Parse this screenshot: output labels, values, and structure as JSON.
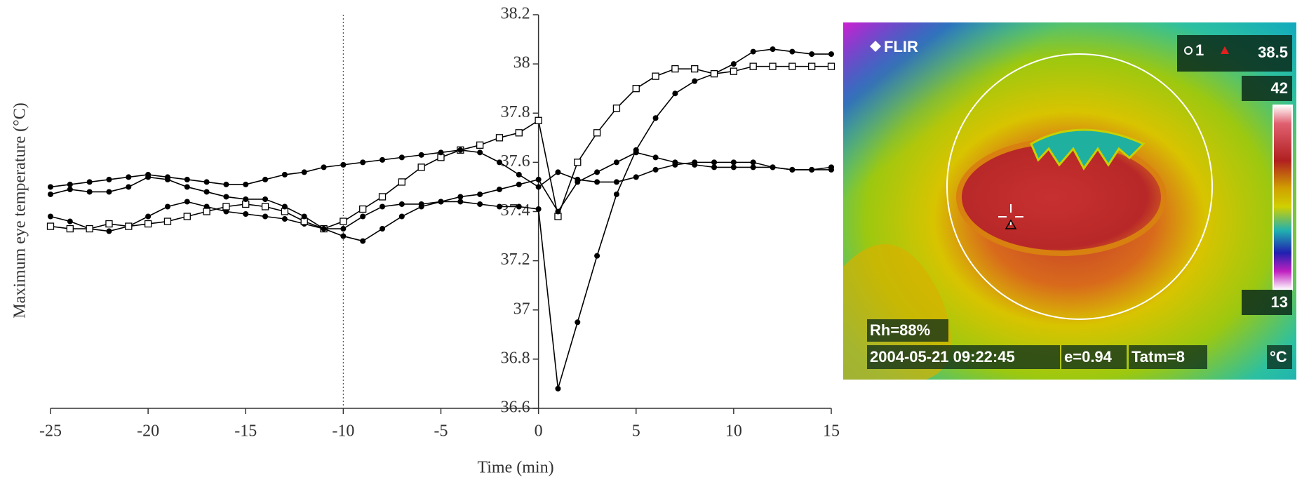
{
  "chart_data": {
    "type": "line",
    "y_label": "Maximum eye temperature (°C)",
    "x_label": "Time (min)",
    "x": [
      -25,
      -24,
      -23,
      -22,
      -21,
      -20,
      -19,
      -18,
      -17,
      -16,
      -15,
      -14,
      -13,
      -12,
      -11,
      -10,
      -9,
      -8,
      -7,
      -6,
      -5,
      -4,
      -3,
      -2,
      -1,
      0,
      1,
      2,
      3,
      4,
      5,
      6,
      7,
      8,
      9,
      10,
      11,
      12,
      13,
      14,
      15
    ],
    "series": [
      {
        "color": "#000000",
        "marker": "circle",
        "values": [
          37.38,
          37.36,
          37.33,
          37.32,
          37.34,
          37.38,
          37.42,
          37.44,
          37.42,
          37.4,
          37.39,
          37.38,
          37.37,
          37.35,
          37.33,
          37.33,
          37.38,
          37.42,
          37.43,
          37.43,
          37.44,
          37.44,
          37.43,
          37.42,
          37.42,
          37.41,
          36.68,
          36.95,
          37.22,
          37.47,
          37.65,
          37.78,
          37.88,
          37.93,
          37.96,
          38.0,
          38.05,
          38.06,
          38.05,
          38.04,
          38.04
        ]
      },
      {
        "color": "#000000",
        "marker": "square",
        "values": [
          37.34,
          37.33,
          37.33,
          37.35,
          37.34,
          37.35,
          37.36,
          37.38,
          37.4,
          37.42,
          37.43,
          37.42,
          37.4,
          37.36,
          37.33,
          37.36,
          37.41,
          37.46,
          37.52,
          37.58,
          37.62,
          37.65,
          37.67,
          37.7,
          37.72,
          37.77,
          37.38,
          37.6,
          37.72,
          37.82,
          37.9,
          37.95,
          37.98,
          37.98,
          37.96,
          37.97,
          37.99,
          37.99,
          37.99,
          37.99,
          37.99
        ]
      },
      {
        "color": "#000000",
        "marker": "circle",
        "values": [
          37.5,
          37.51,
          37.52,
          37.53,
          37.54,
          37.55,
          37.54,
          37.53,
          37.52,
          37.51,
          37.51,
          37.53,
          37.55,
          37.56,
          37.58,
          37.59,
          37.6,
          37.61,
          37.62,
          37.63,
          37.64,
          37.65,
          37.64,
          37.6,
          37.55,
          37.5,
          37.56,
          37.53,
          37.52,
          37.52,
          37.54,
          37.57,
          37.59,
          37.6,
          37.6,
          37.6,
          37.6,
          37.58,
          37.57,
          37.57,
          37.57
        ]
      },
      {
        "color": "#000000",
        "marker": "circle",
        "values": [
          37.47,
          37.49,
          37.48,
          37.48,
          37.5,
          37.54,
          37.53,
          37.5,
          37.48,
          37.46,
          37.45,
          37.45,
          37.42,
          37.38,
          37.33,
          37.3,
          37.28,
          37.33,
          37.38,
          37.42,
          37.44,
          37.46,
          37.47,
          37.49,
          37.51,
          37.53,
          37.4,
          37.52,
          37.56,
          37.6,
          37.64,
          37.62,
          37.6,
          37.59,
          37.58,
          37.58,
          37.58,
          37.58,
          37.57,
          37.57,
          37.58
        ]
      }
    ],
    "xlim": [
      -25,
      15
    ],
    "xticks": [
      -25,
      -20,
      -15,
      -10,
      -5,
      0,
      5,
      10,
      15
    ],
    "ylim": [
      36.6,
      38.2
    ],
    "yticks": [
      36.6,
      36.8,
      37,
      37.2,
      37.4,
      37.6,
      37.8,
      38,
      38.2
    ],
    "reference_line_x": -10
  },
  "thermal_image": {
    "logo": "FLIR",
    "spot": "1",
    "spot_temp": "38.5",
    "scale_max": "42",
    "scale_min": "13",
    "humidity": "Rh=88%",
    "timestamp": "2004-05-21 09:22:45",
    "emissivity": "e=0.94",
    "tatm": "Tatm=8",
    "unit": "°C"
  }
}
